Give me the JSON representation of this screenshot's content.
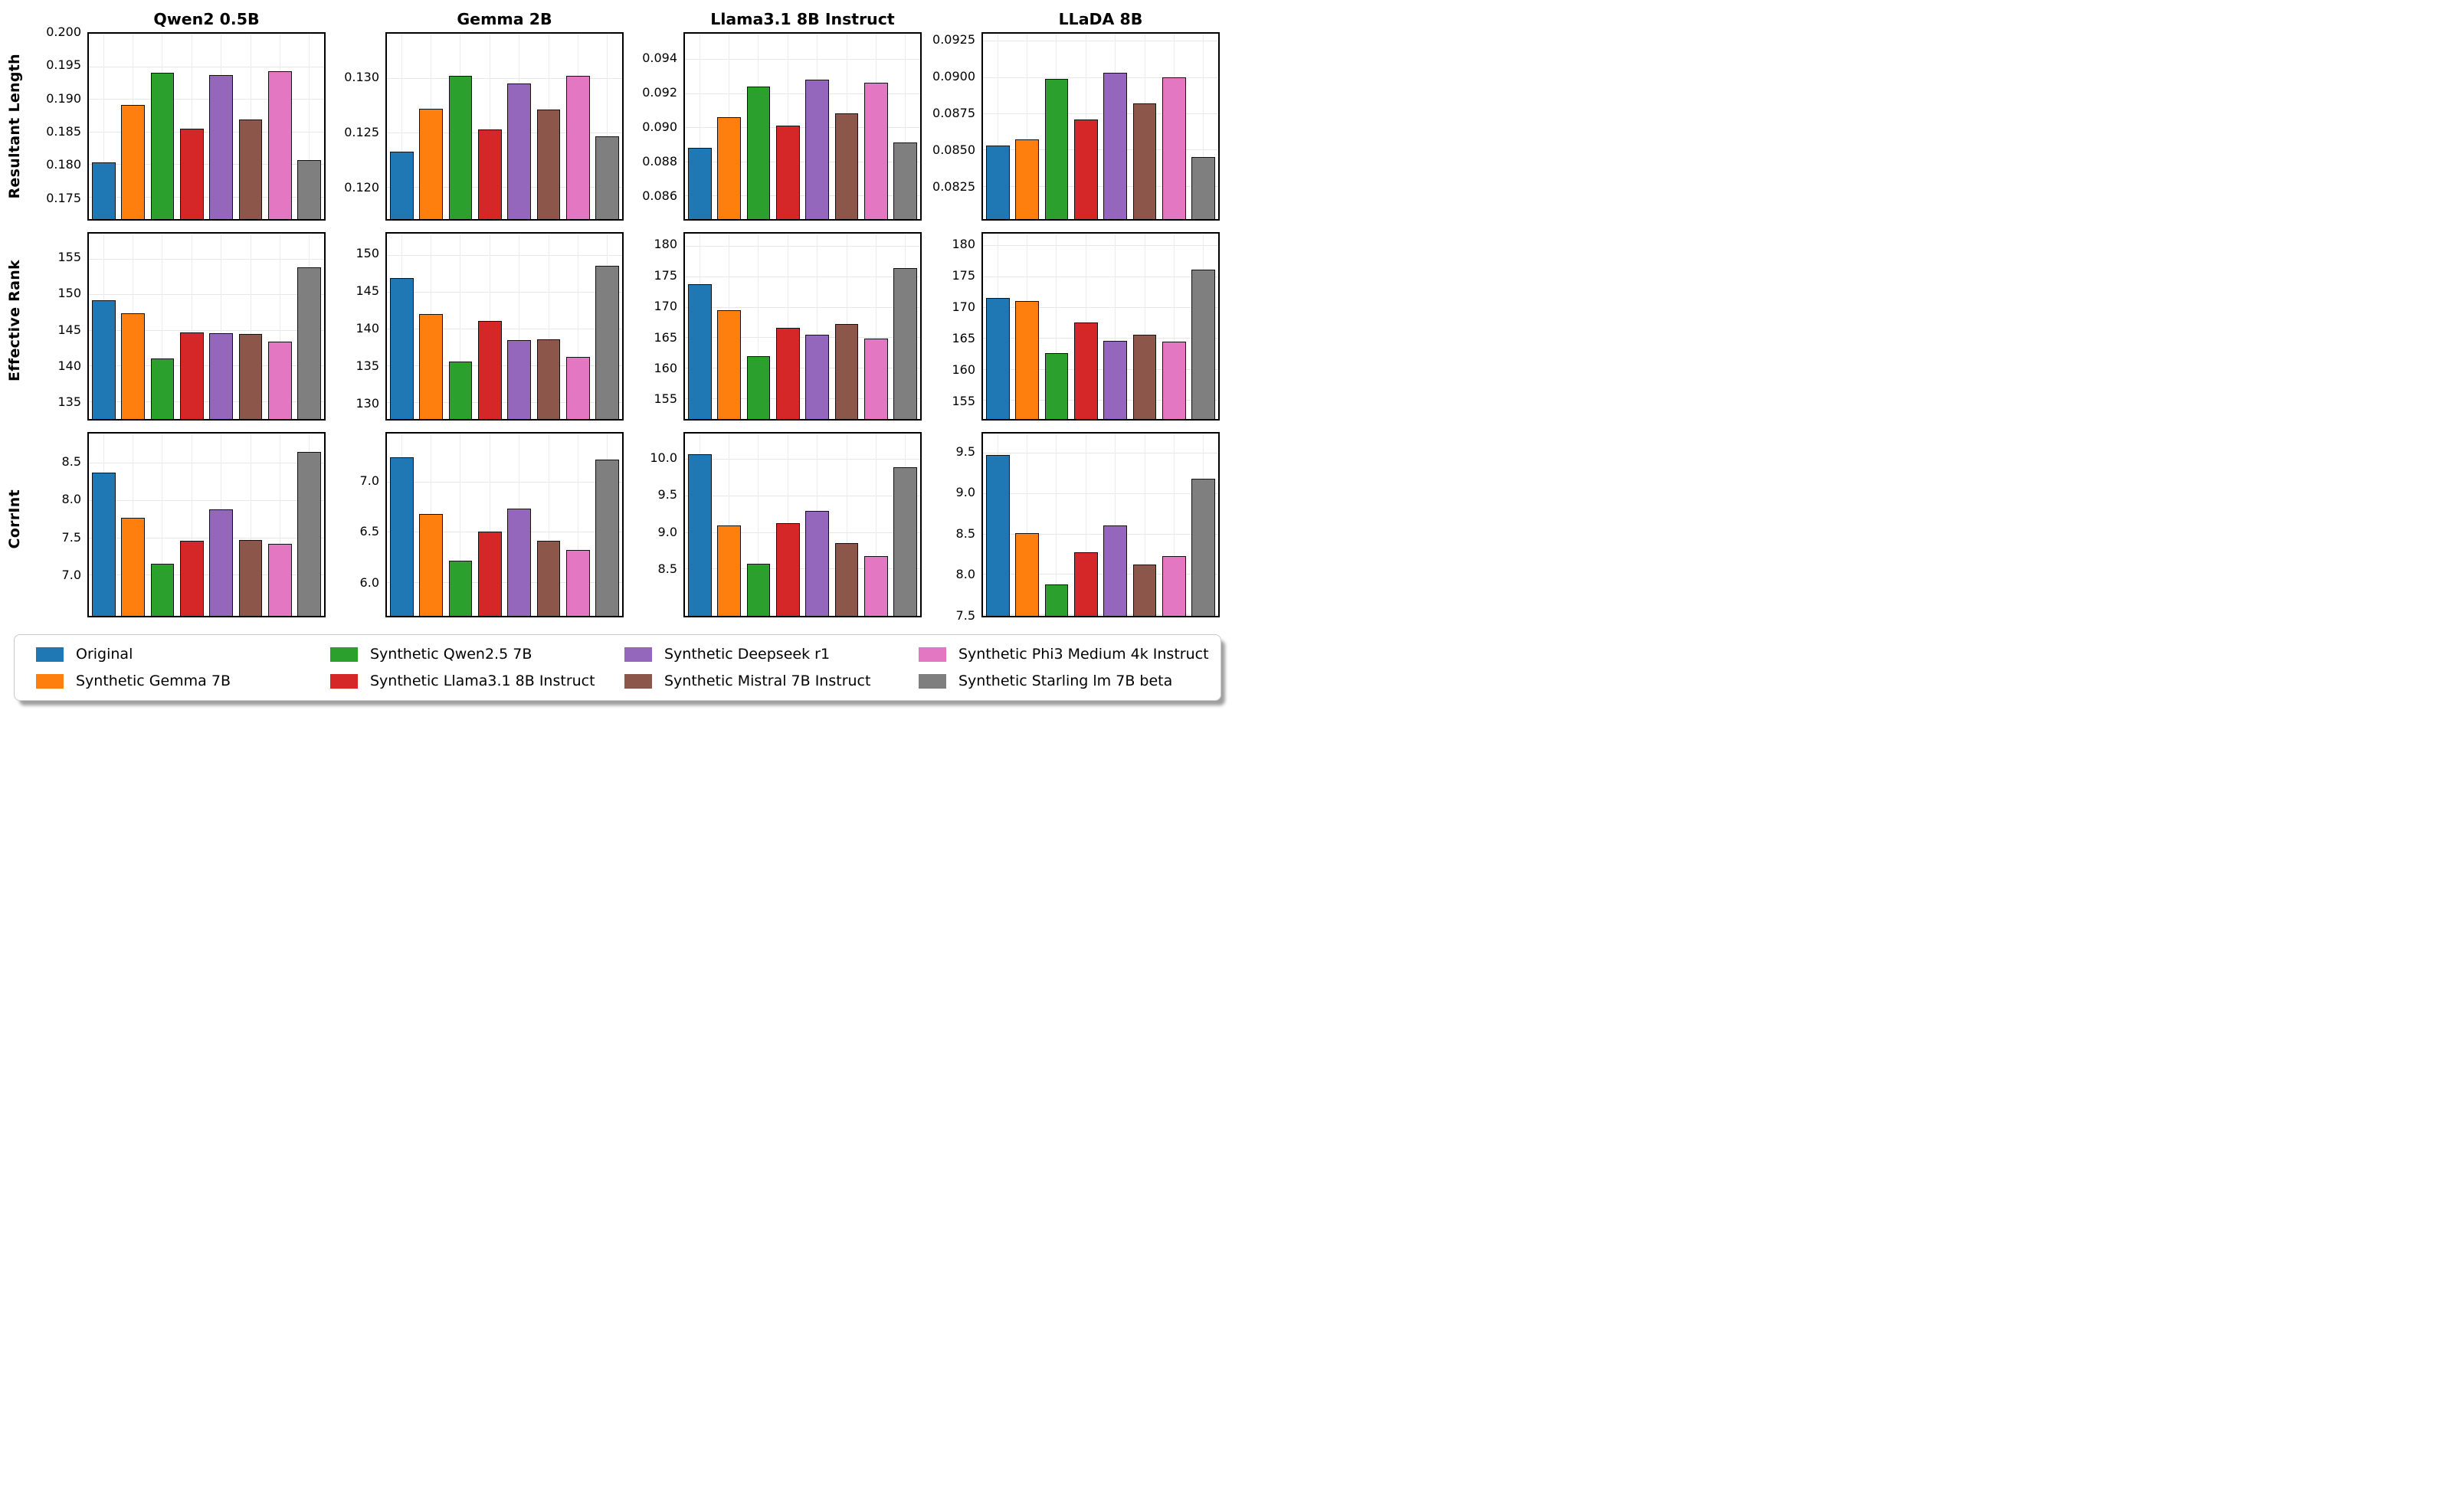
{
  "figure": {
    "column_titles": [
      "Qwen2 0.5B",
      "Gemma 2B",
      "Llama3.1 8B Instruct",
      "LLaDA 8B"
    ],
    "row_labels": [
      "Resultant Length",
      "Effective Rank",
      "CorrInt"
    ],
    "series": [
      "Original",
      "Synthetic Gemma 7B",
      "Synthetic Qwen2.5 7B",
      "Synthetic Llama3.1 8B Instruct",
      "Synthetic Deepseek r1",
      "Synthetic Mistral 7B Instruct",
      "Synthetic Phi3 Medium 4k Instruct",
      "Synthetic Starling lm 7B beta"
    ]
  },
  "legend": {
    "entries": [
      {
        "label": "Original",
        "color": "#1f77b4"
      },
      {
        "label": "Synthetic Gemma 7B",
        "color": "#ff7f0e"
      },
      {
        "label": "Synthetic Qwen2.5 7B",
        "color": "#2ca02c"
      },
      {
        "label": "Synthetic Llama3.1 8B Instruct",
        "color": "#d62728"
      },
      {
        "label": "Synthetic Deepseek r1",
        "color": "#9467bd"
      },
      {
        "label": "Synthetic Mistral 7B Instruct",
        "color": "#8c564b"
      },
      {
        "label": "Synthetic Phi3 Medium 4k Instruct",
        "color": "#e377c2"
      },
      {
        "label": "Synthetic Starling lm 7B beta",
        "color": "#7f7f7f"
      }
    ]
  },
  "chart_data": [
    {
      "type": "bar",
      "row": "Resultant Length",
      "column": "Qwen2 0.5B",
      "values": [
        0.1803,
        0.1891,
        0.194,
        0.1855,
        0.1937,
        0.1868,
        0.1942,
        0.1806
      ],
      "ylim": [
        0.1716,
        0.2
      ],
      "yticks": [
        0.175,
        0.18,
        0.185,
        0.19,
        0.195,
        0.2
      ],
      "ytick_labels": [
        "0.175",
        "0.180",
        "0.185",
        "0.190",
        "0.195",
        "0.200"
      ]
    },
    {
      "type": "bar",
      "row": "Resultant Length",
      "column": "Gemma 2B",
      "values": [
        0.1232,
        0.1272,
        0.1302,
        0.1253,
        0.1295,
        0.1271,
        0.1302,
        0.1246
      ],
      "ylim": [
        0.117,
        0.1341
      ],
      "yticks": [
        0.12,
        0.125,
        0.13
      ],
      "ytick_labels": [
        "0.120",
        "0.125",
        "0.130"
      ]
    },
    {
      "type": "bar",
      "row": "Resultant Length",
      "column": "Llama3.1 8B Instruct",
      "values": [
        0.0888,
        0.0906,
        0.0924,
        0.0901,
        0.0928,
        0.0908,
        0.0926,
        0.0891
      ],
      "ylim": [
        0.0846,
        0.0955
      ],
      "yticks": [
        0.086,
        0.088,
        0.09,
        0.092,
        0.094
      ],
      "ytick_labels": [
        "0.086",
        "0.088",
        "0.090",
        "0.092",
        "0.094"
      ]
    },
    {
      "type": "bar",
      "row": "Resultant Length",
      "column": "LLaDA 8B",
      "values": [
        0.0853,
        0.0857,
        0.0899,
        0.0871,
        0.0903,
        0.0882,
        0.09,
        0.0845
      ],
      "ylim": [
        0.0802,
        0.093
      ],
      "yticks": [
        0.0825,
        0.085,
        0.0875,
        0.09,
        0.0925
      ],
      "ytick_labels": [
        "0.0825",
        "0.0850",
        "0.0875",
        "0.0900",
        "0.0925"
      ]
    },
    {
      "type": "bar",
      "row": "Effective Rank",
      "column": "Qwen2 0.5B",
      "values": [
        149.2,
        147.3,
        141.0,
        144.6,
        144.5,
        144.4,
        143.3,
        153.8
      ],
      "ylim": [
        132.5,
        158.5
      ],
      "yticks": [
        135,
        140,
        145,
        150,
        155
      ],
      "ytick_labels": [
        "135",
        "140",
        "145",
        "150",
        "155"
      ]
    },
    {
      "type": "bar",
      "row": "Effective Rank",
      "column": "Gemma 2B",
      "values": [
        146.9,
        142.0,
        135.5,
        141.0,
        138.4,
        138.5,
        136.1,
        148.5
      ],
      "ylim": [
        127.7,
        152.9
      ],
      "yticks": [
        130,
        135,
        140,
        145,
        150
      ],
      "ytick_labels": [
        "130",
        "135",
        "140",
        "145",
        "150"
      ]
    },
    {
      "type": "bar",
      "row": "Effective Rank",
      "column": "Llama3.1 8B Instruct",
      "values": [
        173.7,
        169.5,
        161.9,
        166.6,
        165.4,
        167.2,
        164.8,
        176.4
      ],
      "ylim": [
        151.6,
        182.0
      ],
      "yticks": [
        155,
        160,
        165,
        170,
        175,
        180
      ],
      "ytick_labels": [
        "155",
        "160",
        "165",
        "170",
        "175",
        "180"
      ]
    },
    {
      "type": "bar",
      "row": "Effective Rank",
      "column": "LLaDA 8B",
      "values": [
        171.5,
        171.0,
        162.6,
        167.5,
        164.6,
        165.5,
        164.4,
        176.1
      ],
      "ylim": [
        151.9,
        181.9
      ],
      "yticks": [
        155,
        160,
        165,
        170,
        175,
        180
      ],
      "ytick_labels": [
        "155",
        "160",
        "165",
        "170",
        "175",
        "180"
      ]
    },
    {
      "type": "bar",
      "row": "CorrInt",
      "column": "Qwen2 0.5B",
      "values": [
        8.37,
        7.76,
        7.15,
        7.46,
        7.87,
        7.47,
        7.41,
        8.64
      ],
      "ylim": [
        6.45,
        8.89
      ],
      "yticks": [
        7.0,
        7.5,
        8.0,
        8.5
      ],
      "ytick_labels": [
        "7.0",
        "7.5",
        "8.0",
        "8.5"
      ]
    },
    {
      "type": "bar",
      "row": "CorrInt",
      "column": "Gemma 2B",
      "values": [
        7.24,
        6.68,
        6.21,
        6.5,
        6.73,
        6.41,
        6.32,
        7.22
      ],
      "ylim": [
        5.66,
        7.48
      ],
      "yticks": [
        6.0,
        6.5,
        7.0
      ],
      "ytick_labels": [
        "6.0",
        "6.5",
        "7.0"
      ]
    },
    {
      "type": "bar",
      "row": "CorrInt",
      "column": "Llama3.1 8B Instruct",
      "values": [
        10.07,
        9.09,
        8.56,
        9.12,
        9.29,
        8.85,
        8.67,
        9.89
      ],
      "ylim": [
        7.85,
        10.35
      ],
      "yticks": [
        8.5,
        9.0,
        9.5,
        10.0
      ],
      "ytick_labels": [
        "8.5",
        "9.0",
        "9.5",
        "10.0"
      ]
    },
    {
      "type": "bar",
      "row": "CorrInt",
      "column": "LLaDA 8B",
      "values": [
        9.47,
        8.51,
        7.87,
        8.27,
        8.6,
        8.12,
        8.22,
        9.18
      ],
      "ylim": [
        7.48,
        9.74
      ],
      "yticks": [
        7.5,
        8.0,
        8.5,
        9.0,
        9.5
      ],
      "ytick_labels": [
        "7.5",
        "8.0",
        "8.5",
        "9.0",
        "9.5"
      ]
    }
  ]
}
